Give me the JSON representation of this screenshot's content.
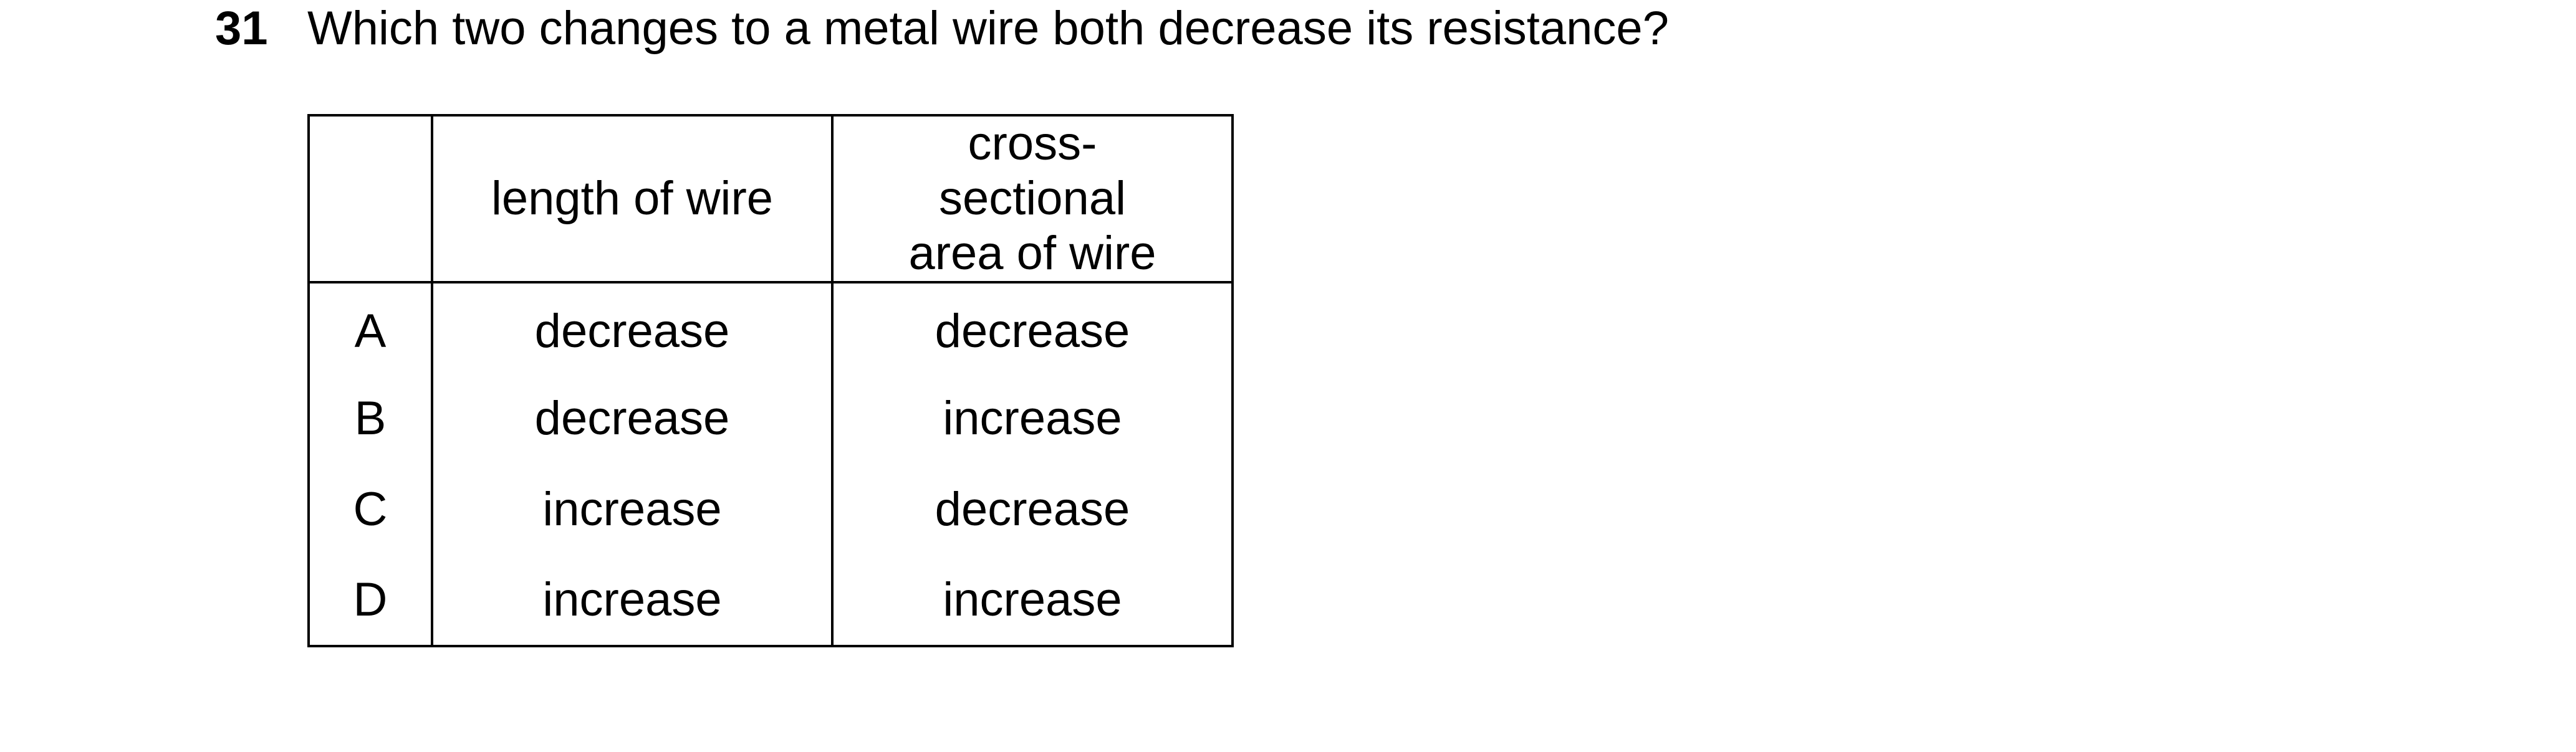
{
  "question": {
    "number": "31",
    "text": "Which two changes to a metal wire both decrease its resistance?"
  },
  "table": {
    "headers": [
      "",
      "length of wire",
      "cross-sectional area of wire"
    ],
    "rows": [
      {
        "option": "A",
        "length": "decrease",
        "area": "decrease"
      },
      {
        "option": "B",
        "length": "decrease",
        "area": "increase"
      },
      {
        "option": "C",
        "length": "increase",
        "area": "decrease"
      },
      {
        "option": "D",
        "length": "increase",
        "area": "increase"
      }
    ]
  }
}
